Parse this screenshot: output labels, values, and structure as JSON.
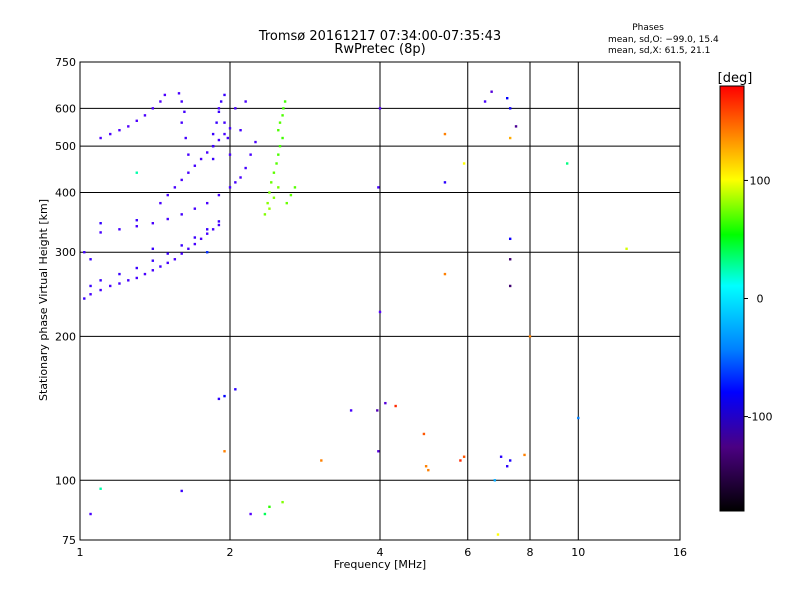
{
  "chart_data": {
    "type": "scatter",
    "title": "Tromsø 20161217 07:34:00-07:35:43",
    "subtitle": "RwPretec (8p)",
    "stats_header": "Phases",
    "stats_o": "mean, sd,O: −99.0, 15.4",
    "stats_x": "mean, sd,X:  61.5, 21.1",
    "xlabel": "Frequency [MHz]",
    "ylabel": "Stationary phase Virtual Height [km]",
    "xscale": "log2",
    "yscale": "log",
    "xlim": [
      1,
      16
    ],
    "ylim": [
      75,
      750
    ],
    "xticks": [
      1,
      2,
      4,
      6,
      8,
      10,
      16
    ],
    "yticks": [
      75,
      100,
      200,
      300,
      400,
      500,
      600,
      750
    ],
    "grid": true,
    "colorbar": {
      "label": "[deg]",
      "range": [
        -180,
        180
      ],
      "ticks": [
        100,
        0,
        -100
      ]
    },
    "series": [
      {
        "points": [
          [
            1.05,
            245,
            -110
          ],
          [
            1.1,
            250,
            -110
          ],
          [
            1.15,
            255,
            -112
          ],
          [
            1.2,
            258,
            -110
          ],
          [
            1.25,
            262,
            -108
          ],
          [
            1.3,
            265,
            -110
          ],
          [
            1.35,
            270,
            -112
          ],
          [
            1.4,
            275,
            -110
          ],
          [
            1.45,
            280,
            -108
          ],
          [
            1.5,
            285,
            -110
          ],
          [
            1.55,
            290,
            -112
          ],
          [
            1.6,
            298,
            -110
          ],
          [
            1.65,
            305,
            -108
          ],
          [
            1.7,
            312,
            -110
          ],
          [
            1.75,
            320,
            -112
          ],
          [
            1.8,
            328,
            -110
          ],
          [
            1.85,
            335,
            -108
          ],
          [
            1.9,
            342,
            -110
          ],
          [
            1.05,
            255,
            -100
          ],
          [
            1.1,
            262,
            -102
          ],
          [
            1.2,
            270,
            -100
          ],
          [
            1.3,
            278,
            -102
          ],
          [
            1.4,
            288,
            -100
          ],
          [
            1.5,
            298,
            -102
          ],
          [
            1.6,
            310,
            -100
          ],
          [
            1.7,
            322,
            -102
          ],
          [
            1.8,
            335,
            -100
          ],
          [
            1.9,
            348,
            -102
          ],
          [
            1.1,
            330,
            -110
          ],
          [
            1.2,
            335,
            -108
          ],
          [
            1.3,
            340,
            -110
          ],
          [
            1.4,
            345,
            -112
          ],
          [
            1.5,
            352,
            -110
          ],
          [
            1.6,
            360,
            -108
          ],
          [
            1.7,
            370,
            -110
          ],
          [
            1.8,
            380,
            -112
          ],
          [
            1.9,
            395,
            -110
          ],
          [
            2.0,
            410,
            -108
          ],
          [
            2.05,
            420,
            -110
          ],
          [
            2.1,
            430,
            -112
          ],
          [
            1.45,
            380,
            -110
          ],
          [
            1.5,
            395,
            -108
          ],
          [
            1.55,
            410,
            -110
          ],
          [
            1.6,
            425,
            -112
          ],
          [
            1.65,
            440,
            -110
          ],
          [
            1.7,
            455,
            -108
          ],
          [
            1.75,
            470,
            -110
          ],
          [
            1.8,
            485,
            -112
          ],
          [
            1.85,
            500,
            -110
          ],
          [
            1.9,
            515,
            -108
          ],
          [
            1.95,
            530,
            -110
          ],
          [
            2.0,
            545,
            -112
          ],
          [
            1.1,
            520,
            -115
          ],
          [
            1.15,
            530,
            -113
          ],
          [
            1.2,
            540,
            -115
          ],
          [
            1.25,
            550,
            -117
          ],
          [
            1.3,
            565,
            -115
          ],
          [
            1.35,
            580,
            -113
          ],
          [
            1.4,
            600,
            -115
          ],
          [
            1.45,
            620,
            -117
          ],
          [
            1.48,
            640,
            -115
          ],
          [
            1.6,
            560,
            -110
          ],
          [
            1.62,
            590,
            -108
          ],
          [
            1.6,
            620,
            -110
          ],
          [
            1.58,
            645,
            -112
          ],
          [
            1.63,
            520,
            -108
          ],
          [
            1.65,
            480,
            -110
          ],
          [
            1.85,
            470,
            -100
          ],
          [
            1.85,
            500,
            -102
          ],
          [
            1.85,
            530,
            -100
          ],
          [
            1.88,
            560,
            -98
          ],
          [
            1.9,
            590,
            -100
          ],
          [
            1.92,
            620,
            -102
          ],
          [
            1.95,
            640,
            -100
          ],
          [
            1.9,
            600,
            -110
          ],
          [
            1.95,
            560,
            -108
          ],
          [
            1.98,
            520,
            -110
          ],
          [
            2.0,
            480,
            -112
          ],
          [
            2.15,
            450,
            -108
          ],
          [
            2.2,
            480,
            -110
          ],
          [
            2.25,
            510,
            -112
          ],
          [
            2.1,
            540,
            -108
          ],
          [
            2.05,
            600,
            -110
          ],
          [
            2.15,
            620,
            -112
          ],
          [
            2.35,
            360,
            90
          ],
          [
            2.38,
            380,
            92
          ],
          [
            2.4,
            400,
            88
          ],
          [
            2.42,
            420,
            85
          ],
          [
            2.45,
            440,
            82
          ],
          [
            2.48,
            460,
            80
          ],
          [
            2.5,
            480,
            78
          ],
          [
            2.52,
            500,
            76
          ],
          [
            2.55,
            520,
            75
          ],
          [
            2.5,
            540,
            78
          ],
          [
            2.52,
            560,
            80
          ],
          [
            2.55,
            580,
            78
          ],
          [
            2.56,
            600,
            76
          ],
          [
            2.58,
            620,
            75
          ],
          [
            2.4,
            370,
            95
          ],
          [
            2.45,
            390,
            90
          ],
          [
            2.5,
            410,
            88
          ],
          [
            2.6,
            380,
            85
          ],
          [
            2.65,
            395,
            82
          ],
          [
            2.7,
            410,
            80
          ],
          [
            1.02,
            240,
            -100
          ],
          [
            1.05,
            290,
            -100
          ],
          [
            1.02,
            300,
            -105
          ],
          [
            1.1,
            345,
            -95
          ],
          [
            1.3,
            350,
            -100
          ],
          [
            1.4,
            305,
            -100
          ],
          [
            4.0,
            600,
            -120
          ],
          [
            3.97,
            410,
            -110
          ],
          [
            4.0,
            225,
            -120
          ],
          [
            3.95,
            140,
            -140
          ],
          [
            4.1,
            145,
            -130
          ],
          [
            3.5,
            140,
            -110
          ],
          [
            3.97,
            115,
            -130
          ],
          [
            4.3,
            143,
            170
          ],
          [
            5.4,
            530,
            150
          ],
          [
            5.4,
            420,
            -90
          ],
          [
            5.4,
            270,
            150
          ],
          [
            5.9,
            460,
            120
          ],
          [
            4.9,
            125,
            160
          ],
          [
            5.0,
            105,
            150
          ],
          [
            4.95,
            107,
            150
          ],
          [
            5.8,
            110,
            170
          ],
          [
            5.9,
            112,
            160
          ],
          [
            6.5,
            620,
            -110
          ],
          [
            6.7,
            650,
            -130
          ],
          [
            7.2,
            630,
            -60
          ],
          [
            7.3,
            600,
            -70
          ],
          [
            7.3,
            520,
            140
          ],
          [
            7.5,
            550,
            -150
          ],
          [
            7.3,
            320,
            -70
          ],
          [
            7.3,
            290,
            -160
          ],
          [
            7.3,
            255,
            -160
          ],
          [
            7.3,
            110,
            -80
          ],
          [
            7.2,
            107,
            -90
          ],
          [
            7.0,
            112,
            -90
          ],
          [
            8.0,
            200,
            150
          ],
          [
            7.8,
            113,
            150
          ],
          [
            6.9,
            77,
            120
          ],
          [
            6.8,
            100,
            -20
          ],
          [
            9.5,
            460,
            30
          ],
          [
            10.0,
            135,
            -30
          ],
          [
            12.5,
            305,
            110
          ],
          [
            2.05,
            155,
            -90
          ],
          [
            1.95,
            150,
            -60
          ],
          [
            1.9,
            148,
            -90
          ],
          [
            1.95,
            115,
            150
          ],
          [
            2.2,
            85,
            -120
          ],
          [
            2.35,
            85,
            40
          ],
          [
            2.4,
            88,
            70
          ],
          [
            2.55,
            90,
            90
          ],
          [
            3.05,
            110,
            150
          ],
          [
            1.6,
            95,
            -100
          ],
          [
            1.1,
            96,
            20
          ],
          [
            1.05,
            85,
            -110
          ],
          [
            1.3,
            440,
            20
          ],
          [
            1.8,
            300,
            -50
          ]
        ]
      }
    ]
  }
}
